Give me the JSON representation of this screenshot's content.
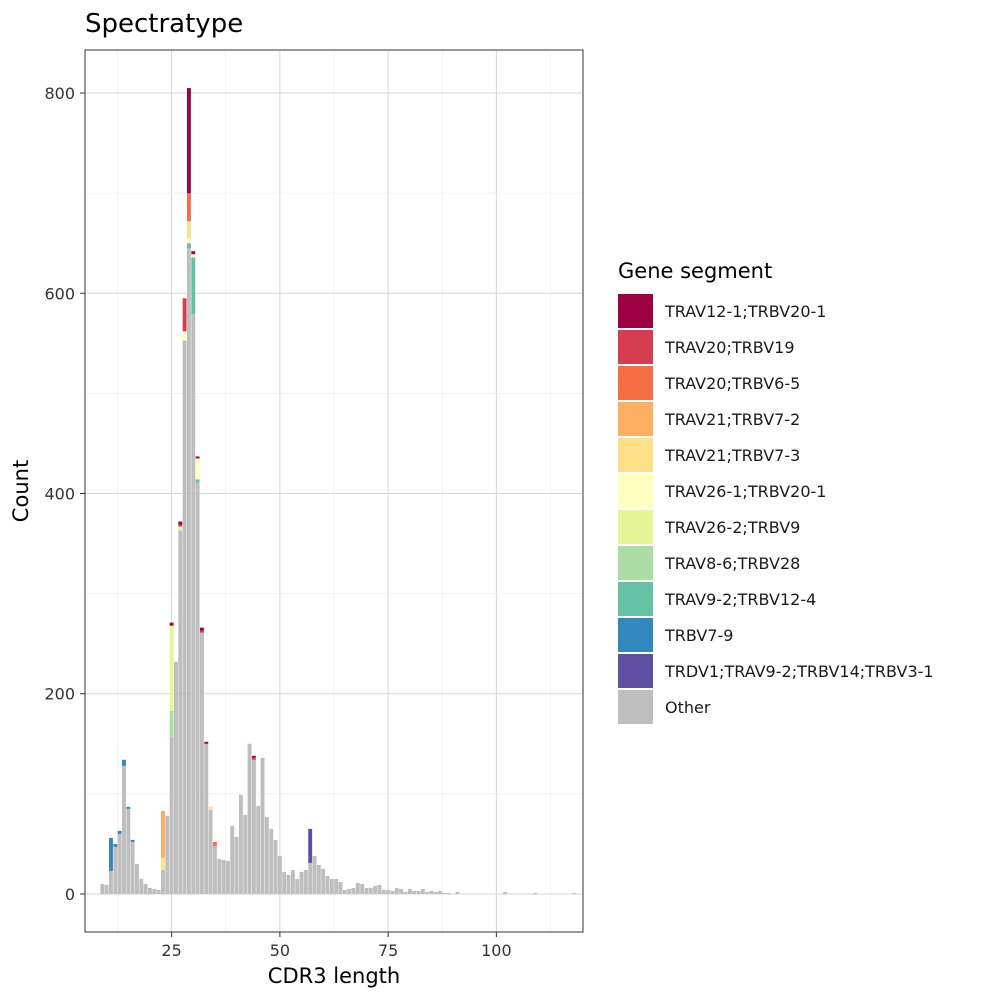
{
  "chart_data": {
    "type": "bar",
    "stacked": true,
    "title": "Spectratype",
    "xlabel": "CDR3 length",
    "ylabel": "Count",
    "xlim": [
      5,
      120
    ],
    "ylim": [
      -38,
      843
    ],
    "x_ticks": [
      25,
      50,
      75,
      100
    ],
    "y_ticks": [
      0,
      200,
      400,
      600,
      800
    ],
    "grid": true,
    "legend_position": "right",
    "legend_title": "Gene segment",
    "series": [
      {
        "name": "TRAV12-1;TRBV20-1",
        "color": "#9E0142"
      },
      {
        "name": "TRAV20;TRBV19",
        "color": "#D53E4F"
      },
      {
        "name": "TRAV20;TRBV6-5",
        "color": "#F46D43"
      },
      {
        "name": "TRAV21;TRBV7-2",
        "color": "#FDAE61"
      },
      {
        "name": "TRAV21;TRBV7-3",
        "color": "#FEE08B"
      },
      {
        "name": "TRAV26-1;TRBV20-1",
        "color": "#FFFFBF"
      },
      {
        "name": "TRAV26-2;TRBV9",
        "color": "#E6F598"
      },
      {
        "name": "TRAV8-6;TRBV28",
        "color": "#ABDDA4"
      },
      {
        "name": "TRAV9-2;TRBV12-4",
        "color": "#66C2A5"
      },
      {
        "name": "TRBV7-9",
        "color": "#3288BD"
      },
      {
        "name": "TRDV1;TRAV9-2;TRBV14;TRBV3-1",
        "color": "#5E4FA2"
      },
      {
        "name": "Other",
        "color": "#BEBEBE"
      }
    ],
    "bars": [
      {
        "x": 9,
        "segments": {
          "Other": 10
        }
      },
      {
        "x": 10,
        "segments": {
          "Other": 9
        }
      },
      {
        "x": 11,
        "segments": {
          "Other": 23,
          "TRBV7-9": 33
        }
      },
      {
        "x": 12,
        "segments": {
          "Other": 47,
          "TRBV7-9": 3
        }
      },
      {
        "x": 13,
        "segments": {
          "Other": 60,
          "TRBV7-9": 3
        }
      },
      {
        "x": 14,
        "segments": {
          "Other": 128,
          "TRBV7-9": 6
        }
      },
      {
        "x": 15,
        "segments": {
          "Other": 85,
          "TRBV7-9": 2
        }
      },
      {
        "x": 16,
        "segments": {
          "Other": 52,
          "TRBV7-9": 2
        }
      },
      {
        "x": 17,
        "segments": {
          "Other": 30
        }
      },
      {
        "x": 18,
        "segments": {
          "Other": 15
        }
      },
      {
        "x": 19,
        "segments": {
          "Other": 10
        }
      },
      {
        "x": 20,
        "segments": {
          "Other": 6
        }
      },
      {
        "x": 21,
        "segments": {
          "Other": 5
        }
      },
      {
        "x": 22,
        "segments": {
          "Other": 4
        }
      },
      {
        "x": 23,
        "segments": {
          "Other": 24,
          "TRAV21;TRBV7-3": 12,
          "TRAV21;TRBV7-2": 47
        }
      },
      {
        "x": 24,
        "segments": {
          "Other": 78
        }
      },
      {
        "x": 25,
        "segments": {
          "Other": 157,
          "TRAV8-6;TRBV28": 26,
          "TRAV26-2;TRBV9": 85,
          "TRAV12-1;TRBV20-1": 3
        }
      },
      {
        "x": 26,
        "segments": {
          "Other": 232
        }
      },
      {
        "x": 27,
        "segments": {
          "Other": 363,
          "TRAV26-2;TRBV9": 4,
          "TRAV20;TRBV19": 2,
          "TRAV12-1;TRBV20-1": 3
        }
      },
      {
        "x": 28,
        "segments": {
          "Other": 553,
          "TRAV26-1;TRBV20-1": 9,
          "TRAV20;TRBV19": 33
        }
      },
      {
        "x": 29,
        "segments": {
          "Other": 645,
          "TRAV9-2;TRBV12-4": 5,
          "TRAV26-1;TRBV20-1": 5,
          "TRAV21;TRBV7-3": 17,
          "TRAV20;TRBV6-5": 28,
          "TRAV12-1;TRBV20-1": 105
        }
      },
      {
        "x": 30,
        "segments": {
          "Other": 579,
          "TRAV9-2;TRBV12-4": 57,
          "TRAV26-1;TRBV20-1": 3,
          "TRAV12-1;TRBV20-1": 3
        }
      },
      {
        "x": 31,
        "segments": {
          "Other": 411,
          "TRAV9-2;TRBV12-4": 3,
          "TRAV26-1;TRBV20-1": 21,
          "TRAV12-1;TRBV20-1": 2
        }
      },
      {
        "x": 32,
        "segments": {
          "Other": 261,
          "TRAV20;TRBV19": 2,
          "TRAV12-1;TRBV20-1": 3
        }
      },
      {
        "x": 33,
        "segments": {
          "Other": 150,
          "TRAV12-1;TRBV20-1": 2
        }
      },
      {
        "x": 34,
        "segments": {
          "Other": 84,
          "TRAV21;TRBV7-3": 3
        }
      },
      {
        "x": 35,
        "segments": {
          "Other": 48,
          "TRAV20;TRBV6-5": 4
        }
      },
      {
        "x": 36,
        "segments": {
          "Other": 35
        }
      },
      {
        "x": 37,
        "segments": {
          "Other": 34
        }
      },
      {
        "x": 38,
        "segments": {
          "Other": 33
        }
      },
      {
        "x": 39,
        "segments": {
          "Other": 68
        }
      },
      {
        "x": 40,
        "segments": {
          "Other": 57
        }
      },
      {
        "x": 41,
        "segments": {
          "Other": 99
        }
      },
      {
        "x": 42,
        "segments": {
          "Other": 79
        }
      },
      {
        "x": 43,
        "segments": {
          "Other": 150
        }
      },
      {
        "x": 44,
        "segments": {
          "Other": 134,
          "TRAV20;TRBV19": 2,
          "TRAV12-1;TRBV20-1": 2
        }
      },
      {
        "x": 45,
        "segments": {
          "Other": 88
        }
      },
      {
        "x": 46,
        "segments": {
          "Other": 136
        }
      },
      {
        "x": 47,
        "segments": {
          "Other": 77
        }
      },
      {
        "x": 48,
        "segments": {
          "Other": 65
        }
      },
      {
        "x": 49,
        "segments": {
          "Other": 54
        }
      },
      {
        "x": 50,
        "segments": {
          "Other": 38
        }
      },
      {
        "x": 51,
        "segments": {
          "Other": 22
        }
      },
      {
        "x": 52,
        "segments": {
          "Other": 19
        }
      },
      {
        "x": 53,
        "segments": {
          "Other": 24
        }
      },
      {
        "x": 54,
        "segments": {
          "Other": 15
        }
      },
      {
        "x": 55,
        "segments": {
          "Other": 22
        }
      },
      {
        "x": 56,
        "segments": {
          "Other": 24
        }
      },
      {
        "x": 57,
        "segments": {
          "Other": 31,
          "TRDV1;TRAV9-2;TRBV14;TRBV3-1": 34
        }
      },
      {
        "x": 58,
        "segments": {
          "Other": 38
        }
      },
      {
        "x": 59,
        "segments": {
          "Other": 29
        }
      },
      {
        "x": 60,
        "segments": {
          "Other": 25
        }
      },
      {
        "x": 61,
        "segments": {
          "Other": 18
        }
      },
      {
        "x": 62,
        "segments": {
          "Other": 15
        }
      },
      {
        "x": 63,
        "segments": {
          "Other": 15
        }
      },
      {
        "x": 64,
        "segments": {
          "Other": 12
        }
      },
      {
        "x": 65,
        "segments": {
          "Other": 4
        }
      },
      {
        "x": 66,
        "segments": {
          "Other": 5
        }
      },
      {
        "x": 67,
        "segments": {
          "Other": 6
        }
      },
      {
        "x": 68,
        "segments": {
          "Other": 11
        }
      },
      {
        "x": 69,
        "segments": {
          "Other": 10
        }
      },
      {
        "x": 70,
        "segments": {
          "Other": 6
        }
      },
      {
        "x": 71,
        "segments": {
          "Other": 6
        }
      },
      {
        "x": 72,
        "segments": {
          "Other": 8
        }
      },
      {
        "x": 73,
        "segments": {
          "Other": 9
        }
      },
      {
        "x": 74,
        "segments": {
          "Other": 4
        }
      },
      {
        "x": 75,
        "segments": {
          "Other": 4
        }
      },
      {
        "x": 76,
        "segments": {
          "Other": 3
        }
      },
      {
        "x": 77,
        "segments": {
          "Other": 6
        }
      },
      {
        "x": 78,
        "segments": {
          "Other": 5
        }
      },
      {
        "x": 79,
        "segments": {
          "Other": 2
        }
      },
      {
        "x": 80,
        "segments": {
          "Other": 5
        }
      },
      {
        "x": 81,
        "segments": {
          "Other": 3
        }
      },
      {
        "x": 82,
        "segments": {
          "Other": 3
        }
      },
      {
        "x": 83,
        "segments": {
          "Other": 5
        }
      },
      {
        "x": 84,
        "segments": {
          "Other": 2
        }
      },
      {
        "x": 85,
        "segments": {
          "Other": 3
        }
      },
      {
        "x": 86,
        "segments": {
          "Other": 2
        }
      },
      {
        "x": 87,
        "segments": {
          "Other": 3
        }
      },
      {
        "x": 88,
        "segments": {
          "Other": 1
        }
      },
      {
        "x": 89,
        "segments": {
          "Other": 1
        }
      },
      {
        "x": 91,
        "segments": {
          "Other": 2
        }
      },
      {
        "x": 102,
        "segments": {
          "Other": 2
        }
      },
      {
        "x": 109,
        "segments": {
          "Other": 1
        }
      },
      {
        "x": 118,
        "segments": {
          "Other": 1
        }
      }
    ]
  }
}
